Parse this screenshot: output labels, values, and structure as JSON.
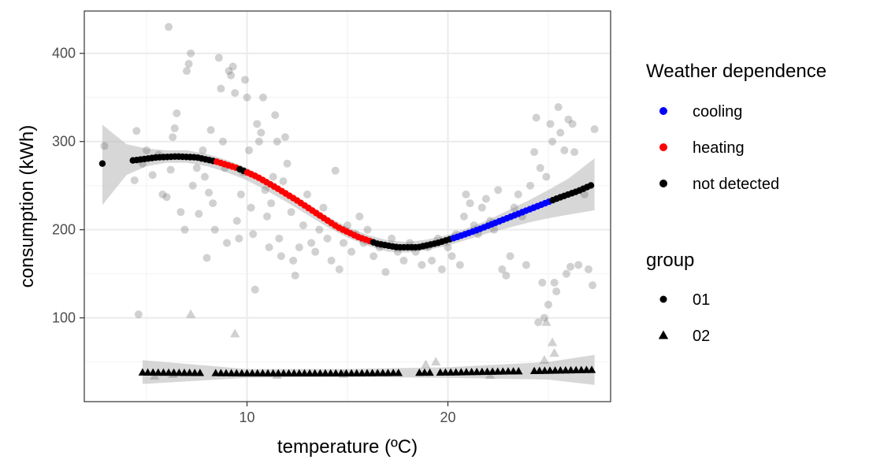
{
  "chart_data": {
    "type": "scatter",
    "title": "",
    "xlabel": "temperature (ºC)",
    "ylabel": "consumption (kWh)",
    "xlim": [
      1.9,
      28.1
    ],
    "ylim": [
      5,
      448
    ],
    "x_ticks": [
      10,
      20
    ],
    "x_minor_ticks": [
      5,
      15,
      25
    ],
    "y_ticks": [
      100,
      200,
      300,
      400
    ],
    "y_minor_ticks": [
      50,
      150,
      250,
      350
    ],
    "grid": true,
    "legend": {
      "position": "right",
      "color_title": "Weather dependence",
      "color_entries": [
        {
          "label": "cooling",
          "color": "#0000ff"
        },
        {
          "label": "heating",
          "color": "#ff0000"
        },
        {
          "label": "not detected",
          "color": "#000000"
        }
      ],
      "shape_title": "group",
      "shape_entries": [
        {
          "label": "01",
          "shape": "circle"
        },
        {
          "label": "02",
          "shape": "triangle"
        }
      ]
    },
    "raw_points_group01": [
      [
        2.9,
        295
      ],
      [
        4.5,
        312
      ],
      [
        4.4,
        256
      ],
      [
        4.6,
        104
      ],
      [
        4.8,
        275
      ],
      [
        5.0,
        290
      ],
      [
        5.3,
        262
      ],
      [
        5.6,
        285
      ],
      [
        5.8,
        240
      ],
      [
        6.0,
        237
      ],
      [
        6.1,
        430
      ],
      [
        6.2,
        268
      ],
      [
        6.3,
        305
      ],
      [
        6.4,
        315
      ],
      [
        6.5,
        332
      ],
      [
        6.7,
        220
      ],
      [
        6.9,
        200
      ],
      [
        7.0,
        380
      ],
      [
        7.1,
        388
      ],
      [
        7.2,
        400
      ],
      [
        7.3,
        250
      ],
      [
        7.5,
        270
      ],
      [
        7.6,
        218
      ],
      [
        7.8,
        290
      ],
      [
        7.9,
        260
      ],
      [
        8.0,
        168
      ],
      [
        8.1,
        242
      ],
      [
        8.2,
        313
      ],
      [
        8.3,
        230
      ],
      [
        8.4,
        200
      ],
      [
        8.6,
        395
      ],
      [
        8.7,
        360
      ],
      [
        8.8,
        300
      ],
      [
        8.9,
        270
      ],
      [
        9.0,
        185
      ],
      [
        9.1,
        380
      ],
      [
        9.2,
        375
      ],
      [
        9.3,
        385
      ],
      [
        9.4,
        355
      ],
      [
        9.5,
        210
      ],
      [
        9.6,
        190
      ],
      [
        9.7,
        240
      ],
      [
        9.8,
        265
      ],
      [
        9.9,
        370
      ],
      [
        10.0,
        350
      ],
      [
        10.1,
        290
      ],
      [
        10.2,
        225
      ],
      [
        10.3,
        195
      ],
      [
        10.4,
        132
      ],
      [
        10.5,
        320
      ],
      [
        10.6,
        300
      ],
      [
        10.7,
        310
      ],
      [
        10.8,
        350
      ],
      [
        10.9,
        245
      ],
      [
        11.0,
        215
      ],
      [
        11.1,
        180
      ],
      [
        11.2,
        230
      ],
      [
        11.3,
        260
      ],
      [
        11.4,
        330
      ],
      [
        11.5,
        300
      ],
      [
        11.6,
        190
      ],
      [
        11.7,
        170
      ],
      [
        11.8,
        255
      ],
      [
        11.9,
        305
      ],
      [
        12.0,
        275
      ],
      [
        12.2,
        220
      ],
      [
        12.3,
        165
      ],
      [
        12.4,
        148
      ],
      [
        12.6,
        180
      ],
      [
        12.8,
        205
      ],
      [
        13.0,
        240
      ],
      [
        13.2,
        185
      ],
      [
        13.4,
        175
      ],
      [
        13.6,
        200
      ],
      [
        13.8,
        225
      ],
      [
        14.0,
        190
      ],
      [
        14.2,
        165
      ],
      [
        14.4,
        267
      ],
      [
        14.6,
        155
      ],
      [
        14.8,
        185
      ],
      [
        15.0,
        205
      ],
      [
        15.2,
        175
      ],
      [
        15.4,
        195
      ],
      [
        15.6,
        215
      ],
      [
        15.8,
        185
      ],
      [
        16.0,
        200
      ],
      [
        16.3,
        170
      ],
      [
        16.6,
        180
      ],
      [
        16.9,
        152
      ],
      [
        17.2,
        190
      ],
      [
        17.5,
        175
      ],
      [
        17.8,
        165
      ],
      [
        18.1,
        185
      ],
      [
        18.4,
        175
      ],
      [
        18.7,
        160
      ],
      [
        19.0,
        180
      ],
      [
        19.2,
        165
      ],
      [
        19.5,
        190
      ],
      [
        19.7,
        155
      ],
      [
        20.0,
        180
      ],
      [
        20.2,
        170
      ],
      [
        20.4,
        195
      ],
      [
        20.6,
        160
      ],
      [
        20.8,
        215
      ],
      [
        20.9,
        240
      ],
      [
        21.1,
        230
      ],
      [
        21.3,
        205
      ],
      [
        21.5,
        195
      ],
      [
        21.7,
        225
      ],
      [
        21.9,
        235
      ],
      [
        22.1,
        210
      ],
      [
        22.3,
        200
      ],
      [
        22.5,
        245
      ],
      [
        22.7,
        155
      ],
      [
        22.9,
        148
      ],
      [
        23.1,
        170
      ],
      [
        23.3,
        225
      ],
      [
        23.5,
        240
      ],
      [
        23.7,
        215
      ],
      [
        23.9,
        160
      ],
      [
        24.1,
        250
      ],
      [
        24.3,
        288
      ],
      [
        24.4,
        327
      ],
      [
        24.5,
        95
      ],
      [
        24.6,
        270
      ],
      [
        24.7,
        140
      ],
      [
        24.8,
        100
      ],
      [
        24.9,
        260
      ],
      [
        25.0,
        115
      ],
      [
        25.1,
        320
      ],
      [
        25.2,
        300
      ],
      [
        25.3,
        140
      ],
      [
        25.4,
        130
      ],
      [
        25.5,
        339
      ],
      [
        25.6,
        310
      ],
      [
        25.8,
        290
      ],
      [
        25.9,
        150
      ],
      [
        26.0,
        325
      ],
      [
        26.1,
        158
      ],
      [
        26.2,
        320
      ],
      [
        26.3,
        288
      ],
      [
        26.5,
        160
      ],
      [
        26.8,
        240
      ],
      [
        27.0,
        155
      ],
      [
        27.2,
        137
      ],
      [
        27.3,
        314
      ]
    ],
    "raw_points_group02": [
      [
        7.2,
        104
      ],
      [
        9.4,
        82
      ],
      [
        18.9,
        47
      ],
      [
        19.4,
        50
      ],
      [
        24.9,
        95
      ],
      [
        25.2,
        72
      ],
      [
        24.8,
        52
      ],
      [
        25.3,
        60
      ],
      [
        5.4,
        34
      ],
      [
        6.3,
        36
      ],
      [
        11.5,
        35
      ],
      [
        14.8,
        36
      ],
      [
        22.1,
        35
      ]
    ],
    "fitted_curve": [
      [
        2.8,
        275
      ],
      [
        4.5,
        279
      ],
      [
        5.5,
        282
      ],
      [
        6.5,
        283
      ],
      [
        7.5,
        282
      ],
      [
        8.5,
        277
      ],
      [
        9.5,
        270
      ],
      [
        10.5,
        260
      ],
      [
        11.5,
        247
      ],
      [
        12.5,
        233
      ],
      [
        13.5,
        218
      ],
      [
        14.5,
        203
      ],
      [
        15.5,
        192
      ],
      [
        16.5,
        184
      ],
      [
        17.5,
        180
      ],
      [
        18.5,
        180
      ],
      [
        19.5,
        185
      ],
      [
        20.5,
        192
      ],
      [
        21.5,
        200
      ],
      [
        22.5,
        209
      ],
      [
        23.5,
        218
      ],
      [
        24.5,
        227
      ],
      [
        25.5,
        236
      ],
      [
        26.5,
        244
      ],
      [
        27.3,
        252
      ]
    ],
    "fitted_curve_band": [
      [
        2.8,
        228,
        319
      ],
      [
        4.0,
        262,
        297
      ],
      [
        5.0,
        272,
        292
      ],
      [
        6.0,
        276,
        290
      ],
      [
        7.0,
        276,
        290
      ],
      [
        8.0,
        272,
        286
      ],
      [
        9.0,
        265,
        279
      ],
      [
        10.0,
        256,
        270
      ],
      [
        11.0,
        244,
        257
      ],
      [
        12.0,
        231,
        243
      ],
      [
        13.0,
        217,
        229
      ],
      [
        14.0,
        203,
        215
      ],
      [
        15.0,
        191,
        203
      ],
      [
        16.0,
        182,
        194
      ],
      [
        17.0,
        175,
        188
      ],
      [
        18.0,
        174,
        186
      ],
      [
        19.0,
        177,
        189
      ],
      [
        20.0,
        182,
        194
      ],
      [
        21.0,
        189,
        202
      ],
      [
        22.0,
        196,
        211
      ],
      [
        23.0,
        202,
        222
      ],
      [
        24.0,
        208,
        233
      ],
      [
        25.0,
        213,
        245
      ],
      [
        26.0,
        217,
        258
      ],
      [
        27.3,
        222,
        281
      ]
    ],
    "curve_segments": [
      {
        "class": "not detected",
        "x_from": 2.8,
        "x_to": 8.4
      },
      {
        "class": "heating",
        "x_from": 8.4,
        "x_to": 9.6
      },
      {
        "class": "not detected",
        "x_from": 9.6,
        "x_to": 9.9
      },
      {
        "class": "heating",
        "x_from": 9.9,
        "x_to": 16.2
      },
      {
        "class": "not detected",
        "x_from": 16.2,
        "x_to": 20.1
      },
      {
        "class": "cooling",
        "x_from": 20.1,
        "x_to": 25.2
      },
      {
        "class": "not detected",
        "x_from": 25.2,
        "x_to": 27.3
      }
    ],
    "group02_fit": [
      [
        4.8,
        38
      ],
      [
        10,
        37
      ],
      [
        15,
        37
      ],
      [
        20,
        38
      ],
      [
        25,
        40
      ],
      [
        27.3,
        41
      ]
    ],
    "group02_band": [
      [
        4.8,
        25,
        52
      ],
      [
        10,
        32,
        42
      ],
      [
        15,
        33,
        42
      ],
      [
        20,
        32,
        44
      ],
      [
        25,
        30,
        50
      ],
      [
        27.3,
        24,
        58
      ]
    ]
  }
}
